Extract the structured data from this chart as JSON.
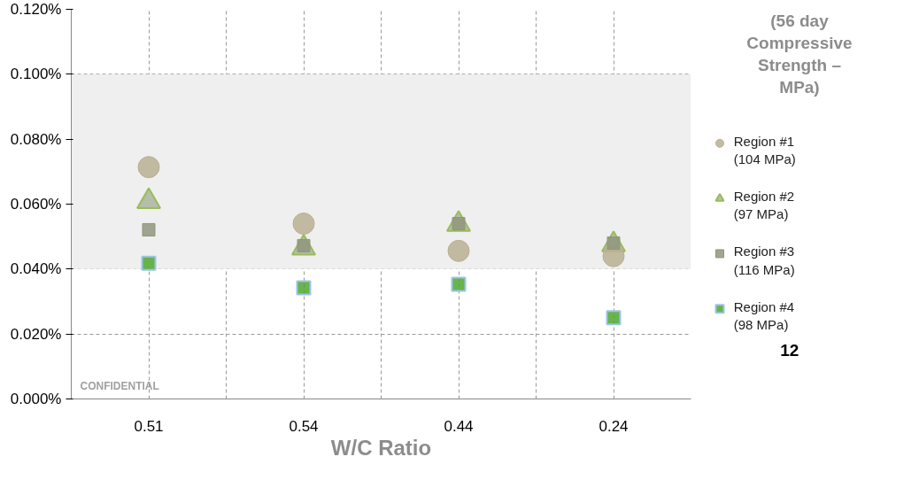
{
  "chart_data": {
    "type": "scatter",
    "xlabel": "W/C Ratio",
    "legend_title": "(56 day Compressive Strength – MPa)",
    "categories": [
      "0.51",
      "0.54",
      "0.44",
      "0.24"
    ],
    "series": [
      {
        "name": "Region #1 (104 MPa)",
        "color": "#b8b092",
        "marker": "circle",
        "values": [
          0.0714,
          0.054,
          0.0456,
          0.044
        ]
      },
      {
        "name": "Region #2 (97 MPa)",
        "color": "#a9b59c",
        "marker": "triangle",
        "values": [
          0.0608,
          0.0465,
          0.0538,
          0.0475
        ]
      },
      {
        "name": "Region #3 (116 MPa)",
        "color": "#8f977c",
        "marker": "square",
        "values": [
          0.0521,
          0.0472,
          0.054,
          0.048
        ]
      },
      {
        "name": "Region #4 (98 MPa)",
        "color": "#4ea72e",
        "marker": "square",
        "values": [
          0.0418,
          0.0342,
          0.0353,
          0.025
        ]
      }
    ],
    "ylim": [
      0,
      0.12
    ],
    "yticks": [
      {
        "value": 0,
        "label": "0.000%"
      },
      {
        "value": 0.02,
        "label": "0.020%"
      },
      {
        "value": 0.04,
        "label": "0.040%"
      },
      {
        "value": 0.06,
        "label": "0.060%"
      },
      {
        "value": 0.08,
        "label": "0.080%"
      },
      {
        "value": 0.1,
        "label": "0.100%"
      },
      {
        "value": 0.12,
        "label": "0.120%"
      }
    ],
    "bands": [
      {
        "axis": "y",
        "from": 0.04,
        "to": 0.1,
        "color": "#efefef"
      }
    ],
    "grid": true,
    "legend": "right",
    "annotations": [
      "CONFIDENTIAL",
      "12"
    ]
  }
}
